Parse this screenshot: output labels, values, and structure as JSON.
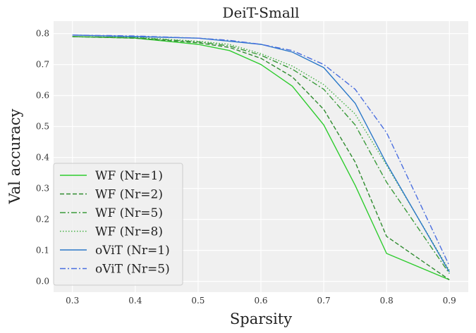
{
  "chart_data": {
    "type": "line",
    "title": "DeiT-Small",
    "xlabel": "Sparsity",
    "ylabel": "Val accuracy",
    "xlim": [
      0.27,
      0.93
    ],
    "ylim": [
      -0.035,
      0.84
    ],
    "xticks": [
      "0.3",
      "0.4",
      "0.5",
      "0.6",
      "0.7",
      "0.8",
      "0.9"
    ],
    "yticks": [
      "0.0",
      "0.1",
      "0.2",
      "0.3",
      "0.4",
      "0.5",
      "0.6",
      "0.7",
      "0.8"
    ],
    "grid": true,
    "legend_position": "lower-left",
    "x": [
      0.3,
      0.4,
      0.5,
      0.55,
      0.6,
      0.65,
      0.7,
      0.75,
      0.8,
      0.9
    ],
    "series": [
      {
        "name": "WF (Nr=1)",
        "color": "#2ecc2e",
        "dash": "solid",
        "values": [
          0.79,
          0.785,
          0.765,
          0.745,
          0.7,
          0.63,
          0.505,
          0.31,
          0.09,
          0.005
        ]
      },
      {
        "name": "WF (Nr=2)",
        "color": "#2e8b2e",
        "dash": "dashed",
        "values": [
          0.79,
          0.785,
          0.77,
          0.755,
          0.72,
          0.66,
          0.555,
          0.385,
          0.145,
          0.005
        ]
      },
      {
        "name": "WF (Nr=5)",
        "color": "#3a9a3a",
        "dash": "dashdot",
        "values": [
          0.79,
          0.787,
          0.773,
          0.76,
          0.73,
          0.685,
          0.62,
          0.505,
          0.32,
          0.025
        ]
      },
      {
        "name": "WF (Nr=8)",
        "color": "#44b044",
        "dash": "dotted",
        "values": [
          0.79,
          0.788,
          0.775,
          0.765,
          0.735,
          0.695,
          0.635,
          0.54,
          0.375,
          0.035
        ]
      },
      {
        "name": "oViT (Nr=1)",
        "color": "#2a78c8",
        "dash": "solid",
        "values": [
          0.795,
          0.79,
          0.785,
          0.775,
          0.765,
          0.74,
          0.69,
          0.575,
          0.38,
          0.03
        ]
      },
      {
        "name": "oViT (Nr=5)",
        "color": "#4a6ee0",
        "dash": "dashdot",
        "values": [
          0.795,
          0.792,
          0.785,
          0.778,
          0.765,
          0.745,
          0.7,
          0.62,
          0.48,
          0.05
        ]
      }
    ]
  }
}
